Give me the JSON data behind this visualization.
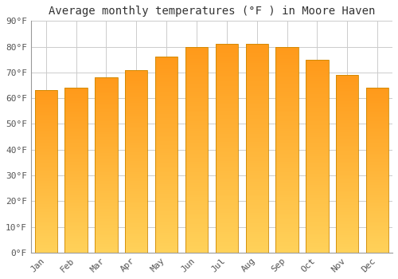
{
  "title": "Average monthly temperatures (°F ) in Moore Haven",
  "months": [
    "Jan",
    "Feb",
    "Mar",
    "Apr",
    "May",
    "Jun",
    "Jul",
    "Aug",
    "Sep",
    "Oct",
    "Nov",
    "Dec"
  ],
  "values": [
    63,
    64,
    68,
    71,
    76,
    80,
    81,
    81,
    80,
    75,
    69,
    64
  ],
  "bar_color_top": "#FFA020",
  "bar_color_bottom": "#FFD060",
  "bar_edge_color": "#CC8800",
  "background_color": "#ffffff",
  "ylim": [
    0,
    90
  ],
  "yticks": [
    0,
    10,
    20,
    30,
    40,
    50,
    60,
    70,
    80,
    90
  ],
  "ytick_labels": [
    "0°F",
    "10°F",
    "20°F",
    "30°F",
    "40°F",
    "50°F",
    "60°F",
    "70°F",
    "80°F",
    "90°F"
  ],
  "title_fontsize": 10,
  "tick_fontsize": 8,
  "grid_color": "#cccccc",
  "bar_width": 0.75
}
